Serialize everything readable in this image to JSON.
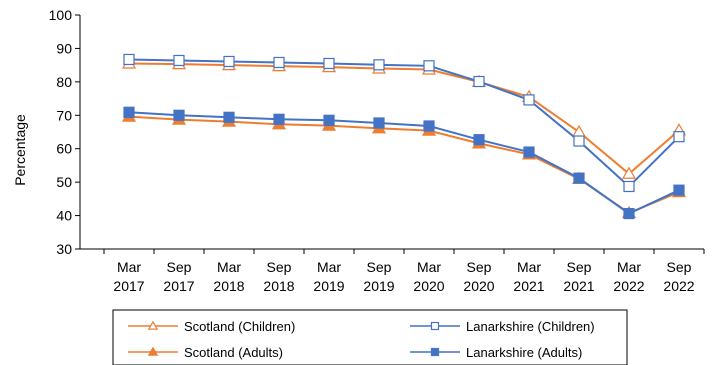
{
  "chart_data": {
    "type": "line",
    "title": "",
    "xlabel": "",
    "ylabel": "Percentage",
    "ylim": [
      30,
      100
    ],
    "yticks": [
      30,
      40,
      50,
      60,
      70,
      80,
      90,
      100
    ],
    "grid": false,
    "legend_position": "bottom",
    "categories": [
      [
        "Mar",
        "2017"
      ],
      [
        "Sep",
        "2017"
      ],
      [
        "Mar",
        "2018"
      ],
      [
        "Sep",
        "2018"
      ],
      [
        "Mar",
        "2019"
      ],
      [
        "Sep",
        "2019"
      ],
      [
        "Mar",
        "2020"
      ],
      [
        "Sep",
        "2020"
      ],
      [
        "Mar",
        "2021"
      ],
      [
        "Sep",
        "2021"
      ],
      [
        "Mar",
        "2022"
      ],
      [
        "Sep",
        "2022"
      ]
    ],
    "series": [
      {
        "name": "Scotland (Children)",
        "color": "#ED7D31",
        "marker": "triangle-open",
        "values": [
          85.5,
          85.3,
          85.0,
          84.7,
          84.4,
          84.0,
          83.7,
          80.0,
          75.5,
          65.0,
          52.5,
          65.5
        ]
      },
      {
        "name": "Lanarkshire (Children)",
        "color": "#4472C4",
        "marker": "square-open",
        "values": [
          86.7,
          86.4,
          86.1,
          85.8,
          85.5,
          85.1,
          84.8,
          80.1,
          74.6,
          62.3,
          48.7,
          63.6
        ]
      },
      {
        "name": "Scotland (Adults)",
        "color": "#ED7D31",
        "marker": "triangle-filled",
        "values": [
          69.6,
          68.7,
          68.1,
          67.3,
          66.9,
          66.1,
          65.4,
          61.6,
          58.3,
          51.0,
          40.8,
          47.0
        ]
      },
      {
        "name": "Lanarkshire (Adults)",
        "color": "#4472C4",
        "marker": "square-filled",
        "values": [
          70.9,
          70.0,
          69.4,
          68.8,
          68.5,
          67.7,
          66.8,
          62.7,
          59.0,
          51.2,
          40.6,
          47.6
        ]
      }
    ]
  }
}
